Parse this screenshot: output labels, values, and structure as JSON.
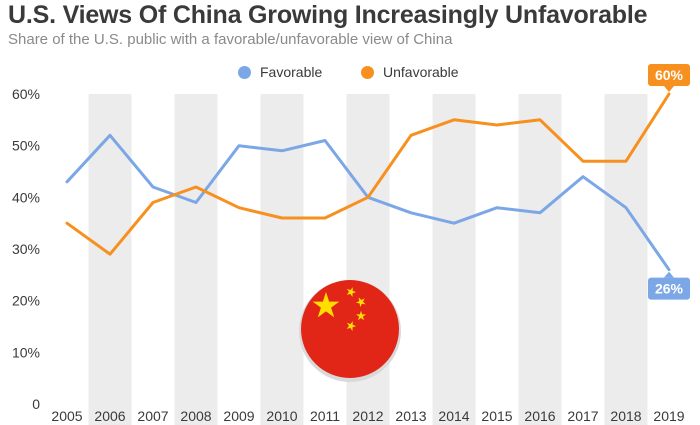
{
  "header": {
    "title": "U.S. Views Of China Growing Increasingly Unfavorable",
    "subtitle": "Share of the U.S. public with a favorable/unfavorable view of China"
  },
  "colors": {
    "favorable": "#7ba7e6",
    "unfavorable": "#f7901e",
    "band": "#ececec",
    "flag_red": "#e12618",
    "flag_star": "#ffde00"
  },
  "flag_icon": "china-flag-icon",
  "chart_data": {
    "type": "line",
    "title": "U.S. Views Of China Growing Increasingly Unfavorable",
    "subtitle": "Share of the U.S. public with a favorable/unfavorable view of China",
    "xlabel": "",
    "ylabel": "",
    "categories": [
      "2005",
      "2006",
      "2007",
      "2008",
      "2009",
      "2010",
      "2011",
      "2012",
      "2013",
      "2014",
      "2015",
      "2016",
      "2017",
      "2018",
      "2019"
    ],
    "ylim": [
      0,
      60
    ],
    "yticks": [
      0,
      10,
      20,
      30,
      40,
      50,
      60
    ],
    "ytick_labels": [
      "0",
      "10%",
      "20%",
      "30%",
      "40%",
      "50%",
      "60%"
    ],
    "grid": false,
    "legend": "top-center",
    "series": [
      {
        "name": "Favorable",
        "color": "#7ba7e6",
        "values": [
          43,
          52,
          42,
          39,
          50,
          49,
          51,
          40,
          37,
          35,
          38,
          37,
          44,
          38,
          26
        ],
        "end_label": "26%"
      },
      {
        "name": "Unfavorable",
        "color": "#f7901e",
        "values": [
          35,
          29,
          39,
          42,
          38,
          36,
          36,
          40,
          52,
          55,
          54,
          55,
          47,
          47,
          60
        ],
        "end_label": "60%"
      }
    ]
  }
}
